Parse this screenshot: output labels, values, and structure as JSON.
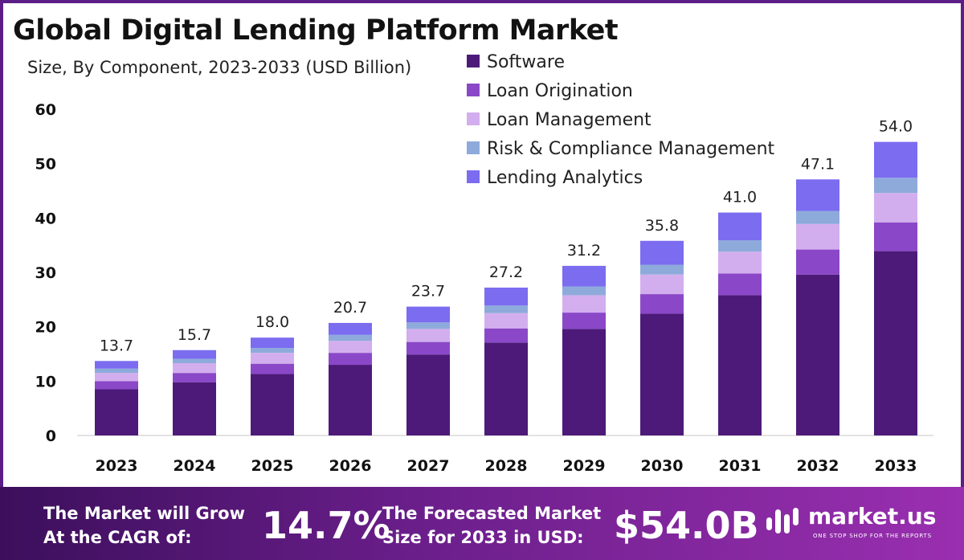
{
  "chart_data": {
    "type": "bar",
    "stacked": true,
    "title": "Global Digital Lending Platform Market",
    "subtitle": "Size, By Component, 2023-2033 (USD Billion)",
    "categories": [
      "2023",
      "2024",
      "2025",
      "2026",
      "2027",
      "2028",
      "2029",
      "2030",
      "2031",
      "2032",
      "2033"
    ],
    "totals": [
      "13.7",
      "15.7",
      "18.0",
      "20.7",
      "23.7",
      "27.2",
      "31.2",
      "35.8",
      "41.0",
      "47.1",
      "54.0"
    ],
    "series": [
      {
        "name": "Software",
        "color": "#4d1a7a",
        "values": [
          8.5,
          9.8,
          11.3,
          13.0,
          14.9,
          17.1,
          19.6,
          22.4,
          25.8,
          29.6,
          33.9
        ]
      },
      {
        "name": "Loan Origination",
        "color": "#8a48c8",
        "values": [
          1.5,
          1.7,
          1.9,
          2.2,
          2.3,
          2.6,
          3.0,
          3.6,
          4.0,
          4.6,
          5.3
        ]
      },
      {
        "name": "Loan Management",
        "color": "#d3aeee",
        "values": [
          1.5,
          1.8,
          2.0,
          2.2,
          2.4,
          2.8,
          3.2,
          3.6,
          4.0,
          4.7,
          5.4
        ]
      },
      {
        "name": "Risk & Compliance Management",
        "color": "#8eaadb",
        "values": [
          0.8,
          0.8,
          0.9,
          1.1,
          1.2,
          1.4,
          1.6,
          1.8,
          2.1,
          2.4,
          2.8
        ]
      },
      {
        "name": "Lending Analytics",
        "color": "#7b6cf0",
        "values": [
          1.4,
          1.6,
          1.9,
          2.2,
          2.9,
          3.3,
          3.8,
          4.4,
          5.1,
          5.8,
          6.6
        ]
      }
    ],
    "ylim": [
      0,
      60
    ],
    "yticks": [
      0,
      10,
      20,
      30,
      40,
      50,
      60
    ],
    "grid": false,
    "legend_position": "top-right"
  },
  "banner": {
    "cagr_label": "The Market will Grow At the CAGR of:",
    "cagr_value": "14.7%",
    "forecast_label": "The Forecasted Market Size for 2033 in USD:",
    "forecast_value": "$54.0B",
    "logo_name": "market.us",
    "logo_tagline": "ONE STOP SHOP FOR THE REPORTS",
    "logo_icon": "market-us-logo-icon"
  }
}
